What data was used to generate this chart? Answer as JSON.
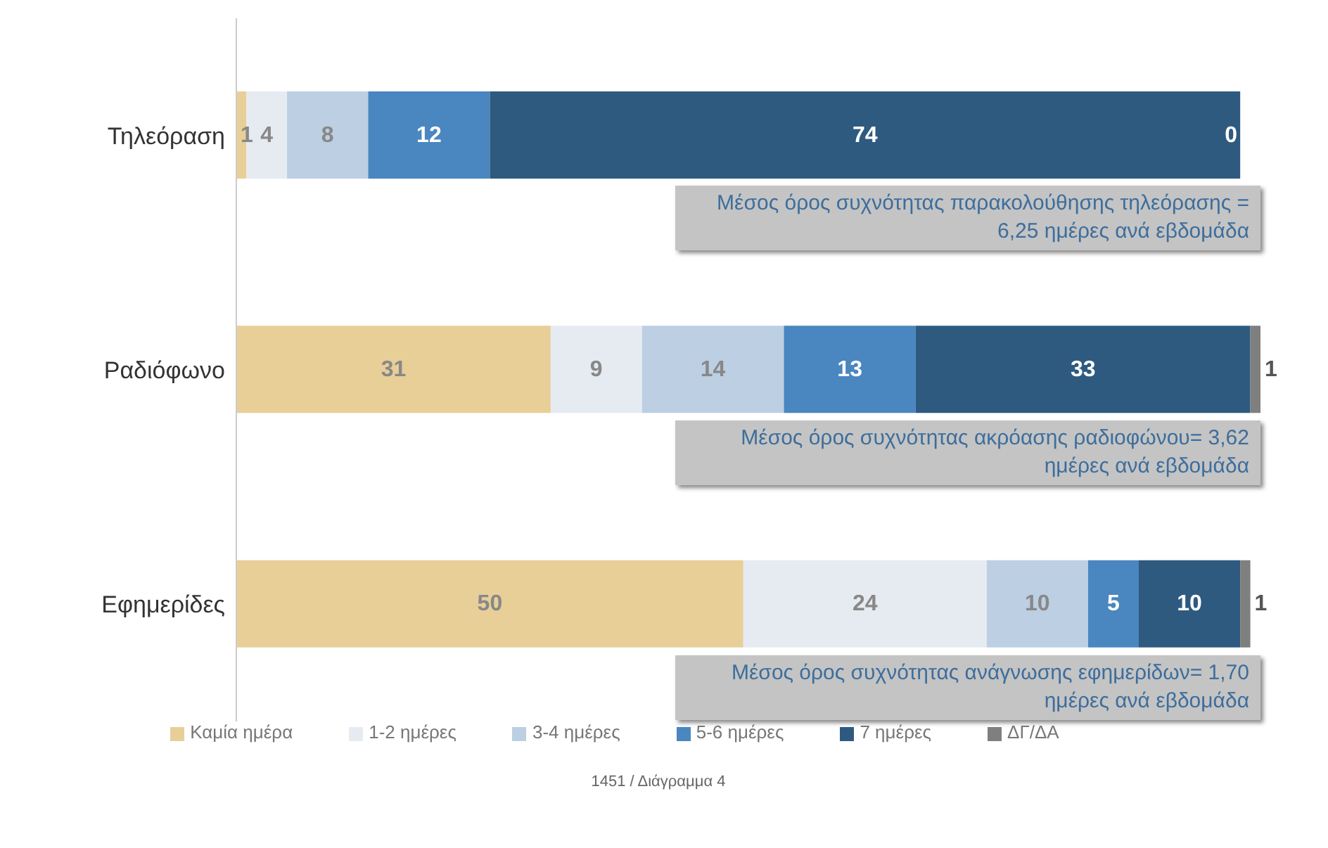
{
  "chart_data": {
    "type": "bar",
    "orientation": "horizontal",
    "stacked": true,
    "categories": [
      "Τηλεόραση",
      "Ραδιόφωνο",
      "Εφημερίδες"
    ],
    "series": [
      {
        "name": "Καμία ημέρα",
        "color": "#e8cf98",
        "values": [
          1,
          31,
          50
        ]
      },
      {
        "name": "1-2 ημέρες",
        "color": "#e6ebf2",
        "values": [
          4,
          9,
          24
        ]
      },
      {
        "name": "3-4 ημέρες",
        "color": "#bccfe3",
        "values": [
          8,
          14,
          10
        ]
      },
      {
        "name": "5-6 ημέρες",
        "color": "#4a86bf",
        "values": [
          12,
          13,
          5
        ]
      },
      {
        "name": "7 ημέρες",
        "color": "#2e5a80",
        "values": [
          74,
          33,
          10
        ]
      },
      {
        "name": "ΔΓ/ΔΑ",
        "color": "#7f7f7f",
        "values": [
          0,
          1,
          1
        ]
      }
    ],
    "data_labels": true,
    "legend": "bottom",
    "annotations": [
      "Μέσος όρος συχνότητας παρακολούθησης τηλεόρασης = 6,25 ημέρες ανά εβδομάδα",
      "Μέσος όρος συχνότητας ακρόασης ραδιοφώνου= 3,62 ημέρες ανά εβδομάδα",
      "Μέσος όρος συχνότητας ανάγνωσης εφημερίδων= 1,70 ημέρες ανά εβδομάδα",
      "1451 / Διάγραμμα 4"
    ]
  }
}
